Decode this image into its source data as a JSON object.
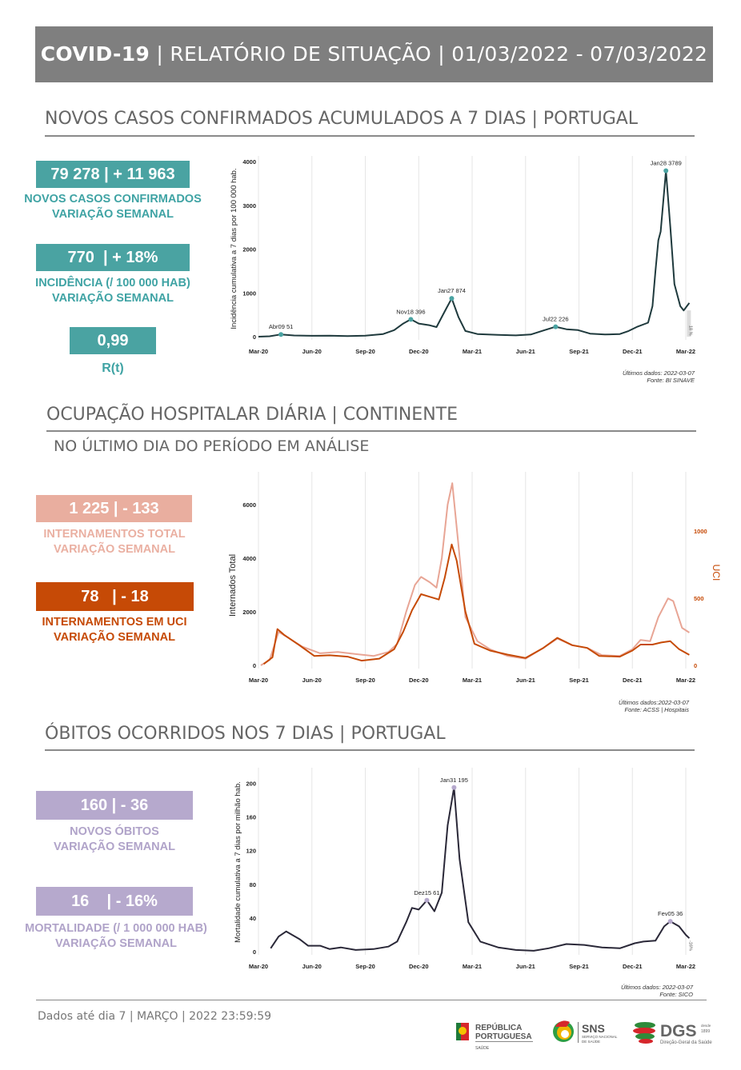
{
  "header": {
    "title_bold": "COVID-19",
    "title_rest": " | RELATÓRIO DE SITUAÇÃO | 01/03/2022 - 07/03/2022",
    "bg": "#7f7f7f"
  },
  "sections": {
    "cases": {
      "title": "NOVOS CASOS CONFIRMADOS ACUMULADOS A 7 DIAS | PORTUGAL",
      "kpis": [
        {
          "value": "79 278 | + 11 963",
          "label1": "NOVOS CASOS CONFIRMADOS",
          "label2": "VARIAÇÃO SEMANAL"
        },
        {
          "value": "770  | + 18%",
          "label1": "INCIDÊNCIA (/ 100 000 HAB)",
          "label2": "VARIAÇÃO SEMANAL"
        },
        {
          "value": "0,99",
          "label1": "R(t)"
        }
      ],
      "color": "#4aa3a2",
      "source1": "Últimos dados: 2022-03-07",
      "source2": "Fonte: BI SINAVE"
    },
    "hospital": {
      "title": "OCUPAÇÃO HOSPITALAR DIÁRIA | CONTINENTE",
      "subtitle": "NO ÚLTIMO DIA DO PERÍODO EM ANÁLISE",
      "kpis": [
        {
          "value": "1 225 | - 133",
          "label1": "INTERNAMENTOS TOTAL",
          "label2": "VARIAÇÃO SEMANAL",
          "color": "#e9ae9f"
        },
        {
          "value": "78   | - 18",
          "label1": "INTERNAMENTOS EM UCI",
          "label2": "VARIAÇÃO SEMANAL",
          "color": "#c64a06"
        }
      ],
      "source1": "Últimos dados:2022-03-07",
      "source2": "Fonte: ACSS | Hospitais"
    },
    "deaths": {
      "title": "ÓBITOS OCORRIDOS NOS 7 DIAS | PORTUGAL",
      "kpis": [
        {
          "value": "160 | - 36",
          "label1": "NOVOS ÓBITOS",
          "label2": "VARIAÇÃO SEMANAL"
        },
        {
          "value": "16    | - 16%",
          "label1": "MORTALIDADE (/ 1 000 000 HAB)",
          "label2": "VARIAÇÃO SEMANAL"
        }
      ],
      "color": "#b6a9cd",
      "source1": "Últimos dados: 2022-03-07",
      "source2": "Fonte: SICO"
    }
  },
  "footer": {
    "text": "Dados até dia 7 | MARÇO | 2022 23:59:59",
    "logos": [
      "REPÚBLICA PORTUGUESA SAÚDE",
      "SNS SERVIÇO NACIONAL DE SAÚDE",
      "DGS Direção-Geral da Saúde desde 1899"
    ]
  },
  "chart_data": [
    {
      "type": "line",
      "ylabel": "Incidência cumulativa a 7 dias por 100 000 hab.",
      "ylim": [
        0,
        4000
      ],
      "yticks": [
        "0",
        "1000",
        "2000",
        "3000",
        "4000"
      ],
      "xticks": [
        "Mar-20",
        "Jun-20",
        "Sep-20",
        "Dec-20",
        "Mar-21",
        "Jun-21",
        "Sep-21",
        "Dec-21",
        "Mar-22"
      ],
      "grid": "vertical",
      "end_label": "18 %",
      "series": [
        {
          "color": "#1f3a3d",
          "points": [
            [
              "2020-03-01",
              0
            ],
            [
              "2020-03-20",
              10
            ],
            [
              "2020-04-09",
              51
            ],
            [
              "2020-05-01",
              28
            ],
            [
              "2020-06-01",
              20
            ],
            [
              "2020-07-01",
              22
            ],
            [
              "2020-08-01",
              15
            ],
            [
              "2020-09-01",
              22
            ],
            [
              "2020-10-01",
              60
            ],
            [
              "2020-10-20",
              150
            ],
            [
              "2020-11-05",
              300
            ],
            [
              "2020-11-18",
              396
            ],
            [
              "2020-12-01",
              300
            ],
            [
              "2020-12-20",
              260
            ],
            [
              "2021-01-01",
              220
            ],
            [
              "2021-01-10",
              450
            ],
            [
              "2021-01-18",
              650
            ],
            [
              "2021-01-27",
              874
            ],
            [
              "2021-02-08",
              450
            ],
            [
              "2021-02-20",
              130
            ],
            [
              "2021-03-10",
              60
            ],
            [
              "2021-04-15",
              40
            ],
            [
              "2021-05-15",
              30
            ],
            [
              "2021-06-10",
              50
            ],
            [
              "2021-07-01",
              140
            ],
            [
              "2021-07-22",
              226
            ],
            [
              "2021-08-10",
              170
            ],
            [
              "2021-08-30",
              150
            ],
            [
              "2021-09-20",
              70
            ],
            [
              "2021-10-15",
              50
            ],
            [
              "2021-11-10",
              60
            ],
            [
              "2021-11-25",
              130
            ],
            [
              "2021-12-10",
              230
            ],
            [
              "2021-12-28",
              320
            ],
            [
              "2022-01-05",
              700
            ],
            [
              "2022-01-10",
              1500
            ],
            [
              "2022-01-15",
              2200
            ],
            [
              "2022-01-19",
              2400
            ],
            [
              "2022-01-28",
              3789
            ],
            [
              "2022-02-05",
              2500
            ],
            [
              "2022-02-12",
              1200
            ],
            [
              "2022-02-22",
              700
            ],
            [
              "2022-02-28",
              600
            ],
            [
              "2022-03-07",
              770
            ]
          ]
        }
      ],
      "annotations": [
        {
          "date": "2020-04-09",
          "value": 51,
          "label": "Abr09 51"
        },
        {
          "date": "2020-11-18",
          "value": 396,
          "label": "Nov18 396"
        },
        {
          "date": "2021-01-27",
          "value": 874,
          "label": "Jan27 874"
        },
        {
          "date": "2021-07-22",
          "value": 226,
          "label": "Jul22 226"
        },
        {
          "date": "2022-01-28",
          "value": 3789,
          "label": "Jan28 3789"
        }
      ]
    },
    {
      "type": "line",
      "ylabel": "Internados Total",
      "y2label": "UCI",
      "ylim": [
        0,
        6000
      ],
      "y2lim": [
        0,
        1000
      ],
      "yticks": [
        "0",
        "2000",
        "4000",
        "6000"
      ],
      "y2ticks": [
        "0",
        "500",
        "1000"
      ],
      "xticks": [
        "Mar-20",
        "Jun-20",
        "Sep-20",
        "Dec-20",
        "Mar-21",
        "Jun-21",
        "Sep-21",
        "Dec-21",
        "Mar-22"
      ],
      "grid": "vertical",
      "series": [
        {
          "axis": "left",
          "color": "#e8a595",
          "points": [
            [
              "2020-03-05",
              0
            ],
            [
              "2020-03-20",
              200
            ],
            [
              "2020-04-05",
              1250
            ],
            [
              "2020-04-20",
              1050
            ],
            [
              "2020-05-15",
              700
            ],
            [
              "2020-06-15",
              450
            ],
            [
              "2020-07-15",
              500
            ],
            [
              "2020-08-15",
              420
            ],
            [
              "2020-09-15",
              350
            ],
            [
              "2020-10-10",
              500
            ],
            [
              "2020-10-25",
              800
            ],
            [
              "2020-11-10",
              2000
            ],
            [
              "2020-11-25",
              3000
            ],
            [
              "2020-12-05",
              3300
            ],
            [
              "2020-12-20",
              3100
            ],
            [
              "2021-01-01",
              2900
            ],
            [
              "2021-01-10",
              4000
            ],
            [
              "2021-01-20",
              6000
            ],
            [
              "2021-01-28",
              6800
            ],
            [
              "2021-02-08",
              4500
            ],
            [
              "2021-02-20",
              1800
            ],
            [
              "2021-03-10",
              900
            ],
            [
              "2021-04-01",
              600
            ],
            [
              "2021-05-01",
              350
            ],
            [
              "2021-06-01",
              250
            ],
            [
              "2021-07-01",
              650
            ],
            [
              "2021-07-25",
              1000
            ],
            [
              "2021-08-20",
              750
            ],
            [
              "2021-09-15",
              650
            ],
            [
              "2021-10-10",
              380
            ],
            [
              "2021-11-10",
              350
            ],
            [
              "2021-12-01",
              600
            ],
            [
              "2021-12-15",
              950
            ],
            [
              "2022-01-01",
              900
            ],
            [
              "2022-01-15",
              1800
            ],
            [
              "2022-02-01",
              2500
            ],
            [
              "2022-02-10",
              2400
            ],
            [
              "2022-02-25",
              1400
            ],
            [
              "2022-03-07",
              1225
            ]
          ]
        },
        {
          "axis": "right",
          "color": "#c64a06",
          "points": [
            [
              "2020-03-10",
              10
            ],
            [
              "2020-03-25",
              60
            ],
            [
              "2020-04-03",
              270
            ],
            [
              "2020-04-15",
              225
            ],
            [
              "2020-05-10",
              150
            ],
            [
              "2020-06-05",
              70
            ],
            [
              "2020-07-01",
              75
            ],
            [
              "2020-08-01",
              65
            ],
            [
              "2020-08-25",
              35
            ],
            [
              "2020-09-25",
              50
            ],
            [
              "2020-10-20",
              120
            ],
            [
              "2020-11-05",
              250
            ],
            [
              "2020-11-20",
              410
            ],
            [
              "2020-12-05",
              530
            ],
            [
              "2020-12-20",
              510
            ],
            [
              "2021-01-05",
              490
            ],
            [
              "2021-01-15",
              650
            ],
            [
              "2021-01-27",
              900
            ],
            [
              "2021-02-05",
              780
            ],
            [
              "2021-02-20",
              400
            ],
            [
              "2021-03-05",
              160
            ],
            [
              "2021-04-01",
              110
            ],
            [
              "2021-05-01",
              80
            ],
            [
              "2021-06-01",
              55
            ],
            [
              "2021-07-01",
              130
            ],
            [
              "2021-07-25",
              205
            ],
            [
              "2021-08-20",
              150
            ],
            [
              "2021-09-15",
              130
            ],
            [
              "2021-10-05",
              70
            ],
            [
              "2021-11-10",
              65
            ],
            [
              "2021-12-01",
              110
            ],
            [
              "2021-12-15",
              155
            ],
            [
              "2022-01-05",
              155
            ],
            [
              "2022-01-20",
              170
            ],
            [
              "2022-02-05",
              180
            ],
            [
              "2022-02-20",
              120
            ],
            [
              "2022-03-07",
              78
            ]
          ]
        }
      ]
    },
    {
      "type": "line",
      "ylabel": "Mortalidade cumulativa a 7 dias por milhão hab.",
      "ylim": [
        0,
        210
      ],
      "yticks": [
        "0",
        "40",
        "80",
        "120",
        "160",
        "200"
      ],
      "xticks": [
        "Mar-20",
        "Jun-20",
        "Sep-20",
        "Dec-20",
        "Mar-21",
        "Jun-21",
        "Sep-21",
        "Dec-21",
        "Mar-22"
      ],
      "grid": "vertical",
      "end_label": "-16%",
      "series": [
        {
          "color": "#2a2838",
          "points": [
            [
              "2020-03-22",
              4
            ],
            [
              "2020-04-05",
              18
            ],
            [
              "2020-04-18",
              24
            ],
            [
              "2020-05-10",
              15
            ],
            [
              "2020-05-25",
              7
            ],
            [
              "2020-06-15",
              7
            ],
            [
              "2020-07-01",
              3
            ],
            [
              "2020-07-20",
              5
            ],
            [
              "2020-08-15",
              2
            ],
            [
              "2020-09-15",
              3
            ],
            [
              "2020-10-10",
              6
            ],
            [
              "2020-10-25",
              12
            ],
            [
              "2020-11-10",
              35
            ],
            [
              "2020-11-20",
              52
            ],
            [
              "2020-12-01",
              50
            ],
            [
              "2020-12-15",
              61
            ],
            [
              "2020-12-28",
              48
            ],
            [
              "2021-01-10",
              70
            ],
            [
              "2021-01-20",
              150
            ],
            [
              "2021-01-31",
              195
            ],
            [
              "2021-02-10",
              110
            ],
            [
              "2021-02-25",
              35
            ],
            [
              "2021-03-15",
              12
            ],
            [
              "2021-04-15",
              5
            ],
            [
              "2021-05-15",
              2
            ],
            [
              "2021-06-15",
              1
            ],
            [
              "2021-07-10",
              4
            ],
            [
              "2021-08-10",
              9
            ],
            [
              "2021-09-10",
              8
            ],
            [
              "2021-10-10",
              5
            ],
            [
              "2021-11-10",
              4
            ],
            [
              "2021-12-05",
              10
            ],
            [
              "2021-12-20",
              12
            ],
            [
              "2022-01-10",
              13
            ],
            [
              "2022-01-25",
              30
            ],
            [
              "2022-02-05",
              36
            ],
            [
              "2022-02-20",
              30
            ],
            [
              "2022-03-01",
              20
            ],
            [
              "2022-03-07",
              16
            ]
          ]
        }
      ],
      "annotations": [
        {
          "date": "2020-12-15",
          "value": 61,
          "label": "Dez15 61"
        },
        {
          "date": "2021-01-31",
          "value": 195,
          "label": "Jan31 195"
        },
        {
          "date": "2022-02-05",
          "value": 36,
          "label": "Fev05 36"
        }
      ]
    }
  ]
}
